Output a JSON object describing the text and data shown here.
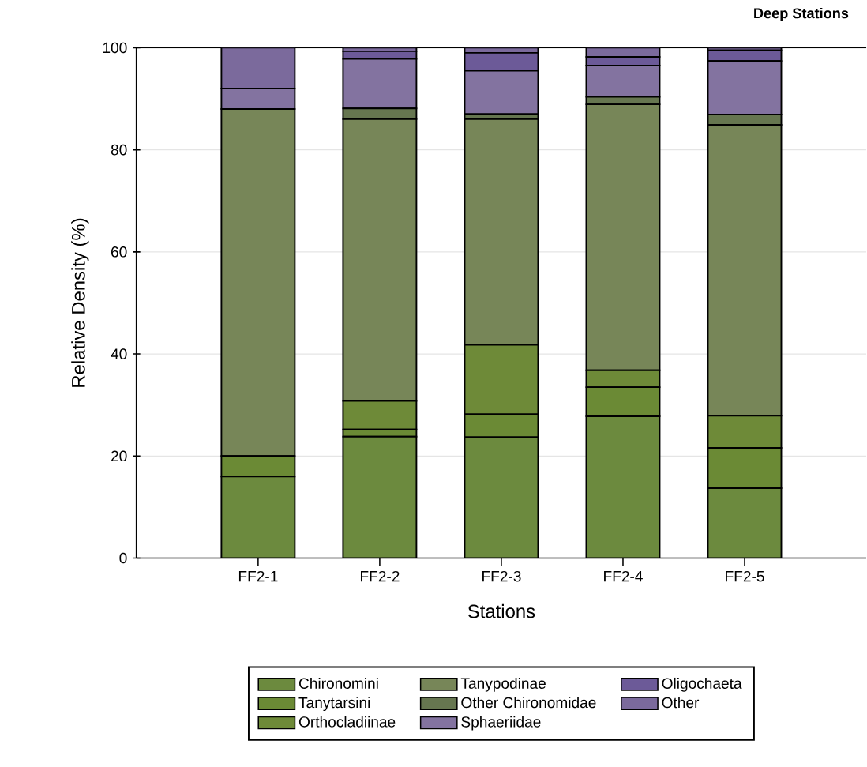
{
  "chart_data": {
    "type": "bar",
    "stacked": true,
    "title": "Deep Stations",
    "xlabel": "Stations",
    "ylabel": "Relative Density (%)",
    "categories": [
      "FF2-1",
      "FF2-2",
      "FF2-3",
      "FF2-4",
      "FF2-5"
    ],
    "ylim": [
      0,
      100
    ],
    "yticks": [
      0,
      20,
      40,
      60,
      80,
      100
    ],
    "grid": "y",
    "legend": "bottom",
    "series": [
      {
        "name": "Chironomini",
        "color": "#6c8a3e",
        "values": [
          16,
          23.8,
          23.7,
          27.8,
          13.7
        ]
      },
      {
        "name": "Tanytarsini",
        "color": "#6b8a35",
        "values": [
          4,
          1.4,
          4.5,
          5.7,
          7.9
        ]
      },
      {
        "name": "Orthocladiinae",
        "color": "#6e8a38",
        "values": [
          0,
          5.6,
          13.6,
          3.3,
          6.3
        ]
      },
      {
        "name": "Tanypodinae",
        "color": "#778658",
        "values": [
          68,
          55.2,
          44.2,
          52.1,
          57
        ]
      },
      {
        "name": "Other Chironomidae",
        "color": "#667650",
        "values": [
          0,
          2.1,
          1,
          1.5,
          2
        ]
      },
      {
        "name": "Sphaeriidae",
        "color": "#8373a0",
        "values": [
          4,
          9.7,
          8.5,
          6.1,
          10.5
        ]
      },
      {
        "name": "Oligochaeta",
        "color": "#6c5a98",
        "values": [
          0,
          1.5,
          3.5,
          1.7,
          2.1
        ]
      },
      {
        "name": "Other",
        "color": "#7b6a9c",
        "values": [
          8,
          0.7,
          1,
          1.8,
          0.5
        ]
      }
    ]
  }
}
